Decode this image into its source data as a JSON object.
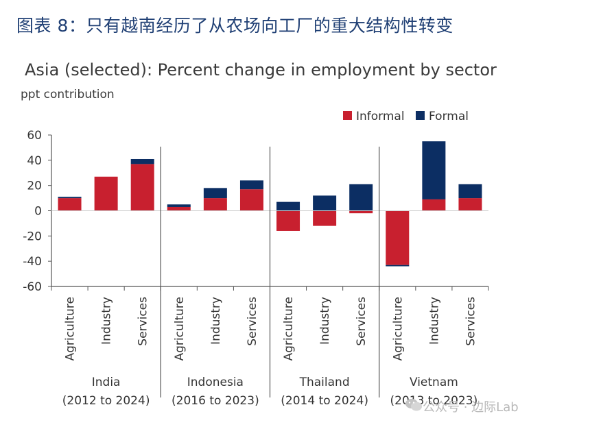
{
  "figure_title": "图表 8：只有越南经历了从农场向工厂的重大结构性转变",
  "watermark": "公众号 · 边际Lab",
  "colors": {
    "informal": "#c8202f",
    "formal": "#0c2e63",
    "axis": "#555555",
    "text": "#333333"
  },
  "chart_data": {
    "type": "bar",
    "stacked": true,
    "title": "Asia (selected): Percent change in employment by sector",
    "ylabel": "ppt contribution",
    "ylim": [
      -60,
      60
    ],
    "yticks": [
      60,
      40,
      20,
      0,
      -20,
      -40,
      -60
    ],
    "legend": [
      "Informal",
      "Formal"
    ],
    "legend_position": "top-right",
    "categories": [
      "Agriculture",
      "Industry",
      "Services",
      "Agriculture",
      "Industry",
      "Services",
      "Agriculture",
      "Industry",
      "Services",
      "Agriculture",
      "Industry",
      "Services"
    ],
    "groups": [
      {
        "name": "India",
        "period": "(2012 to 2024)"
      },
      {
        "name": "Indonesia",
        "period": "(2016 to 2023)"
      },
      {
        "name": "Thailand",
        "period": "(2014 to 2024)"
      },
      {
        "name": "Vietnam",
        "period": "(2013 to 2023)"
      }
    ],
    "series": [
      {
        "name": "Informal",
        "values": [
          10,
          27,
          37,
          3,
          10,
          17,
          -16,
          -12,
          -2,
          -43,
          9,
          10
        ]
      },
      {
        "name": "Formal",
        "values": [
          1,
          0,
          4,
          2,
          8,
          7,
          7,
          12,
          21,
          -1,
          46,
          11
        ]
      }
    ]
  }
}
